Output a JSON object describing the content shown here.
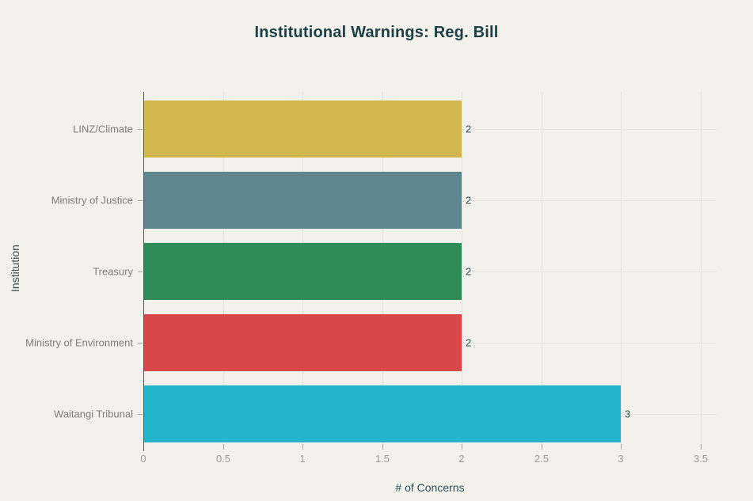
{
  "chart_data": {
    "type": "bar",
    "orientation": "horizontal",
    "title": "Institutional Warnings: Reg. Bill",
    "xlabel": "# of Concerns",
    "ylabel": "Institution",
    "categories": [
      "LINZ/Climate",
      "Ministry of Justice",
      "Treasury",
      "Ministry of Environment",
      "Waitangi Tribunal"
    ],
    "values": [
      2,
      2,
      2,
      2,
      3
    ],
    "value_labels": [
      "2",
      "2",
      "2",
      "2",
      "3"
    ],
    "bar_colors": [
      "#d1b74e",
      "#5d868f",
      "#2f8b57",
      "#d84848",
      "#23b5cb"
    ],
    "x_ticks": [
      {
        "label": "0",
        "value": 0
      },
      {
        "label": "0.5",
        "value": 0.5
      },
      {
        "label": "1",
        "value": 1
      },
      {
        "label": "1.5",
        "value": 1.5
      },
      {
        "label": "2",
        "value": 2
      },
      {
        "label": "2.5",
        "value": 2.5
      },
      {
        "label": "3",
        "value": 3
      },
      {
        "label": "3.5",
        "value": 3.5
      }
    ],
    "xlim": [
      0,
      3.6
    ],
    "grid": true,
    "legend": "none"
  },
  "colors": {
    "background": "#f2f1eb",
    "title_text": "#1d4046",
    "axis_title_text": "#2f4e57",
    "category_label_text": "#7d7d78",
    "tick_label_text": "#9b9b95",
    "value_label_text": "#2f4e57",
    "gridline": "#e2e2d8",
    "axis_line": "#55555a"
  }
}
